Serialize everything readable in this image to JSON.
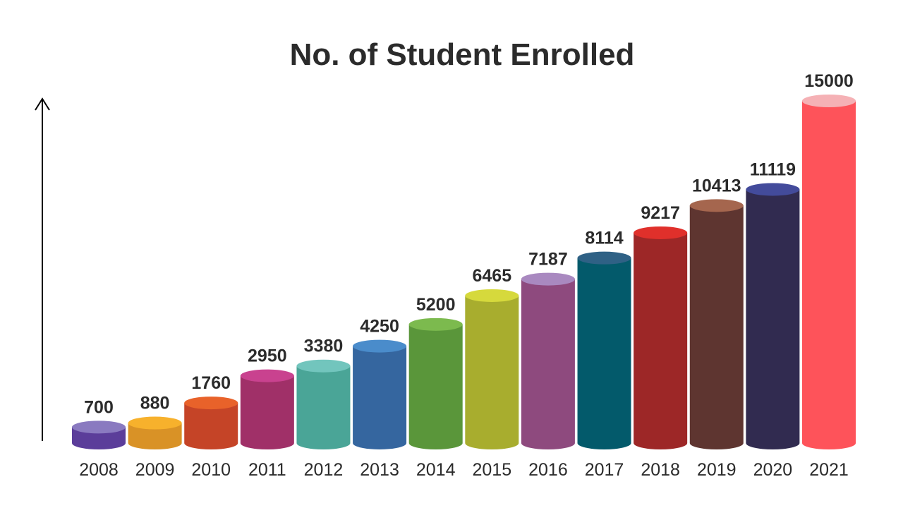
{
  "chart_data": {
    "type": "cylinder-bar",
    "title": "No. of Student Enrolled",
    "categories": [
      "2008",
      "2009",
      "2010",
      "2011",
      "2012",
      "2013",
      "2014",
      "2015",
      "2016",
      "2017",
      "2018",
      "2019",
      "2020",
      "2021"
    ],
    "values": [
      700,
      880,
      1760,
      2950,
      3380,
      4250,
      5200,
      6465,
      7187,
      8114,
      9217,
      10413,
      11119,
      15000
    ],
    "colors": [
      "#5b3d9a",
      "#d99226",
      "#c54427",
      "#a03068",
      "#4aa597",
      "#35669f",
      "#5a963a",
      "#a8ad2e",
      "#8e4a7e",
      "#035a6b",
      "#9d2727",
      "#5e3530",
      "#312b50",
      "#fe535a"
    ],
    "top_colors": [
      "#8a7ac0",
      "#f7b12c",
      "#e8622a",
      "#c9428f",
      "#72c5bd",
      "#4a8ccb",
      "#7cba4e",
      "#d6d93c",
      "#a989c0",
      "#2f6185",
      "#e0302b",
      "#a5664e",
      "#434b9b",
      "#f5b1b5"
    ]
  }
}
